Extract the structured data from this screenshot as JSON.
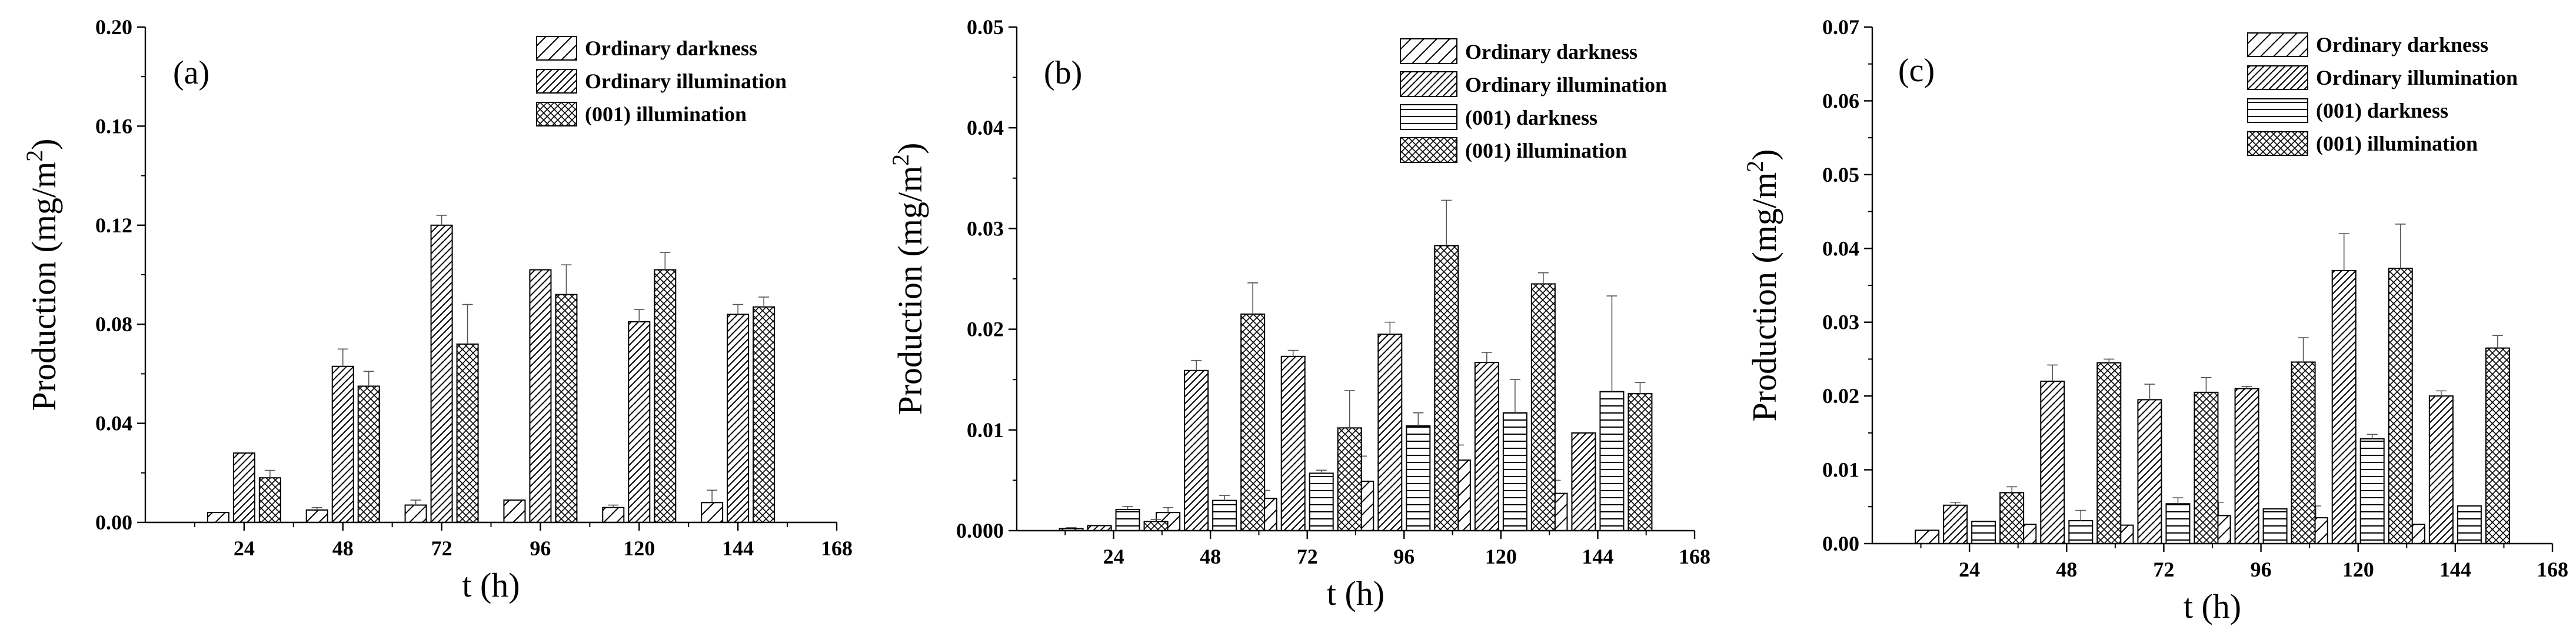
{
  "chart_data": [
    {
      "type": "bar",
      "panel_label": "(a)",
      "xlabel": "t (h)",
      "ylabel": "Production (mg/m",
      "ylabel_sup": "2",
      "ylabel_close": ")",
      "xlim": [
        0,
        168
      ],
      "x_ticks": [
        24,
        48,
        72,
        96,
        120,
        144,
        168
      ],
      "ylim": [
        0,
        0.2
      ],
      "y_ticks": [
        "0.00",
        "0.04",
        "0.08",
        "0.12",
        "0.16",
        "0.20"
      ],
      "legend_position": "top-right",
      "x": [
        24,
        48,
        72,
        96,
        120,
        144
      ],
      "series": [
        {
          "name": "Ordinary darkness",
          "pattern": "diag-wide",
          "values": [
            0.004,
            0.005,
            0.007,
            0.009,
            0.006,
            0.008
          ],
          "errors": [
            0.0,
            0.001,
            0.002,
            0.0,
            0.001,
            0.005
          ]
        },
        {
          "name": "Ordinary illumination",
          "pattern": "diag-dense",
          "values": [
            0.028,
            0.063,
            0.12,
            0.102,
            0.081,
            0.084
          ],
          "errors": [
            0.0,
            0.007,
            0.004,
            0.0,
            0.005,
            0.004
          ]
        },
        {
          "name": "(001) illumination",
          "pattern": "cross",
          "values": [
            0.018,
            0.055,
            0.072,
            0.092,
            0.102,
            0.087
          ],
          "errors": [
            0.003,
            0.006,
            0.016,
            0.012,
            0.007,
            0.004
          ]
        }
      ]
    },
    {
      "type": "bar",
      "panel_label": "(b)",
      "xlabel": "t (h)",
      "ylabel": "Production (mg/m",
      "ylabel_sup": "2",
      "ylabel_close": ")",
      "xlim": [
        0,
        168
      ],
      "x_ticks": [
        24,
        48,
        72,
        96,
        120,
        144,
        168
      ],
      "ylim": [
        0,
        0.05
      ],
      "y_ticks": [
        "0.000",
        "0.01",
        "0.02",
        "0.03",
        "0.04",
        "0.05"
      ],
      "legend_position": "top-right",
      "x": [
        24,
        48,
        72,
        96,
        120,
        144
      ],
      "series": [
        {
          "name": "Ordinary darkness",
          "pattern": "diag-wide",
          "values": [
            0.0002,
            0.0018,
            0.0032,
            0.0049,
            0.007,
            0.0037
          ],
          "errors": [
            0.0001,
            0.0005,
            0.0008,
            0.0025,
            0.0015,
            0.0013
          ]
        },
        {
          "name": "Ordinary illumination",
          "pattern": "diag-dense",
          "values": [
            0.0005,
            0.0159,
            0.0173,
            0.0195,
            0.0167,
            0.0097
          ],
          "errors": [
            0.0,
            0.001,
            0.0006,
            0.0012,
            0.001,
            0.0
          ]
        },
        {
          "name": "(001) darkness",
          "pattern": "horiz",
          "values": [
            0.0021,
            0.003,
            0.0057,
            0.0104,
            0.0117,
            0.0138
          ],
          "errors": [
            0.0003,
            0.0005,
            0.0003,
            0.0013,
            0.0033,
            0.0095
          ]
        },
        {
          "name": "(001) illumination",
          "pattern": "cross",
          "values": [
            0.0009,
            0.0215,
            0.0102,
            0.0283,
            0.0245,
            0.0136
          ],
          "errors": [
            0.0002,
            0.0031,
            0.0037,
            0.0045,
            0.0011,
            0.0011
          ]
        }
      ]
    },
    {
      "type": "bar",
      "panel_label": "(c)",
      "xlabel": "t (h)",
      "ylabel": "Production (mg/m",
      "ylabel_sup": "2",
      "ylabel_close": ")",
      "xlim": [
        0,
        168
      ],
      "x_ticks": [
        24,
        48,
        72,
        96,
        120,
        144,
        168
      ],
      "ylim": [
        0,
        0.07
      ],
      "y_ticks": [
        "0.00",
        "0.01",
        "0.02",
        "0.03",
        "0.04",
        "0.05",
        "0.06",
        "0.07"
      ],
      "legend_position": "top-right",
      "x": [
        24,
        48,
        72,
        96,
        120,
        144
      ],
      "series": [
        {
          "name": "Ordinary darkness",
          "pattern": "diag-wide",
          "values": [
            0.0018,
            0.0026,
            0.0025,
            0.0038,
            0.0035,
            0.0026
          ],
          "errors": [
            0.0,
            0.0,
            0.0,
            0.0018,
            0.0016,
            0.0
          ],
          "bar_fill": "diag-wide"
        },
        {
          "name": "Ordinary illumination",
          "pattern": "diag-dense",
          "values": [
            0.0052,
            0.022,
            0.0195,
            0.021,
            0.037,
            0.02
          ],
          "errors": [
            0.0004,
            0.0022,
            0.0021,
            0.0003,
            0.005,
            0.0007
          ]
        },
        {
          "name": "(001) darkness",
          "pattern": "horiz",
          "values": [
            0.003,
            0.0031,
            0.0054,
            0.0047,
            0.0142,
            0.0051
          ],
          "errors": [
            0.0,
            0.0014,
            0.0008,
            0.0,
            0.0006,
            0.0
          ]
        },
        {
          "name": "(001) illumination",
          "pattern": "cross",
          "values": [
            0.0069,
            0.0245,
            0.0205,
            0.0246,
            0.0373,
            0.0265
          ],
          "errors": [
            0.0008,
            0.0005,
            0.002,
            0.0033,
            0.006,
            0.0017
          ]
        }
      ]
    }
  ]
}
